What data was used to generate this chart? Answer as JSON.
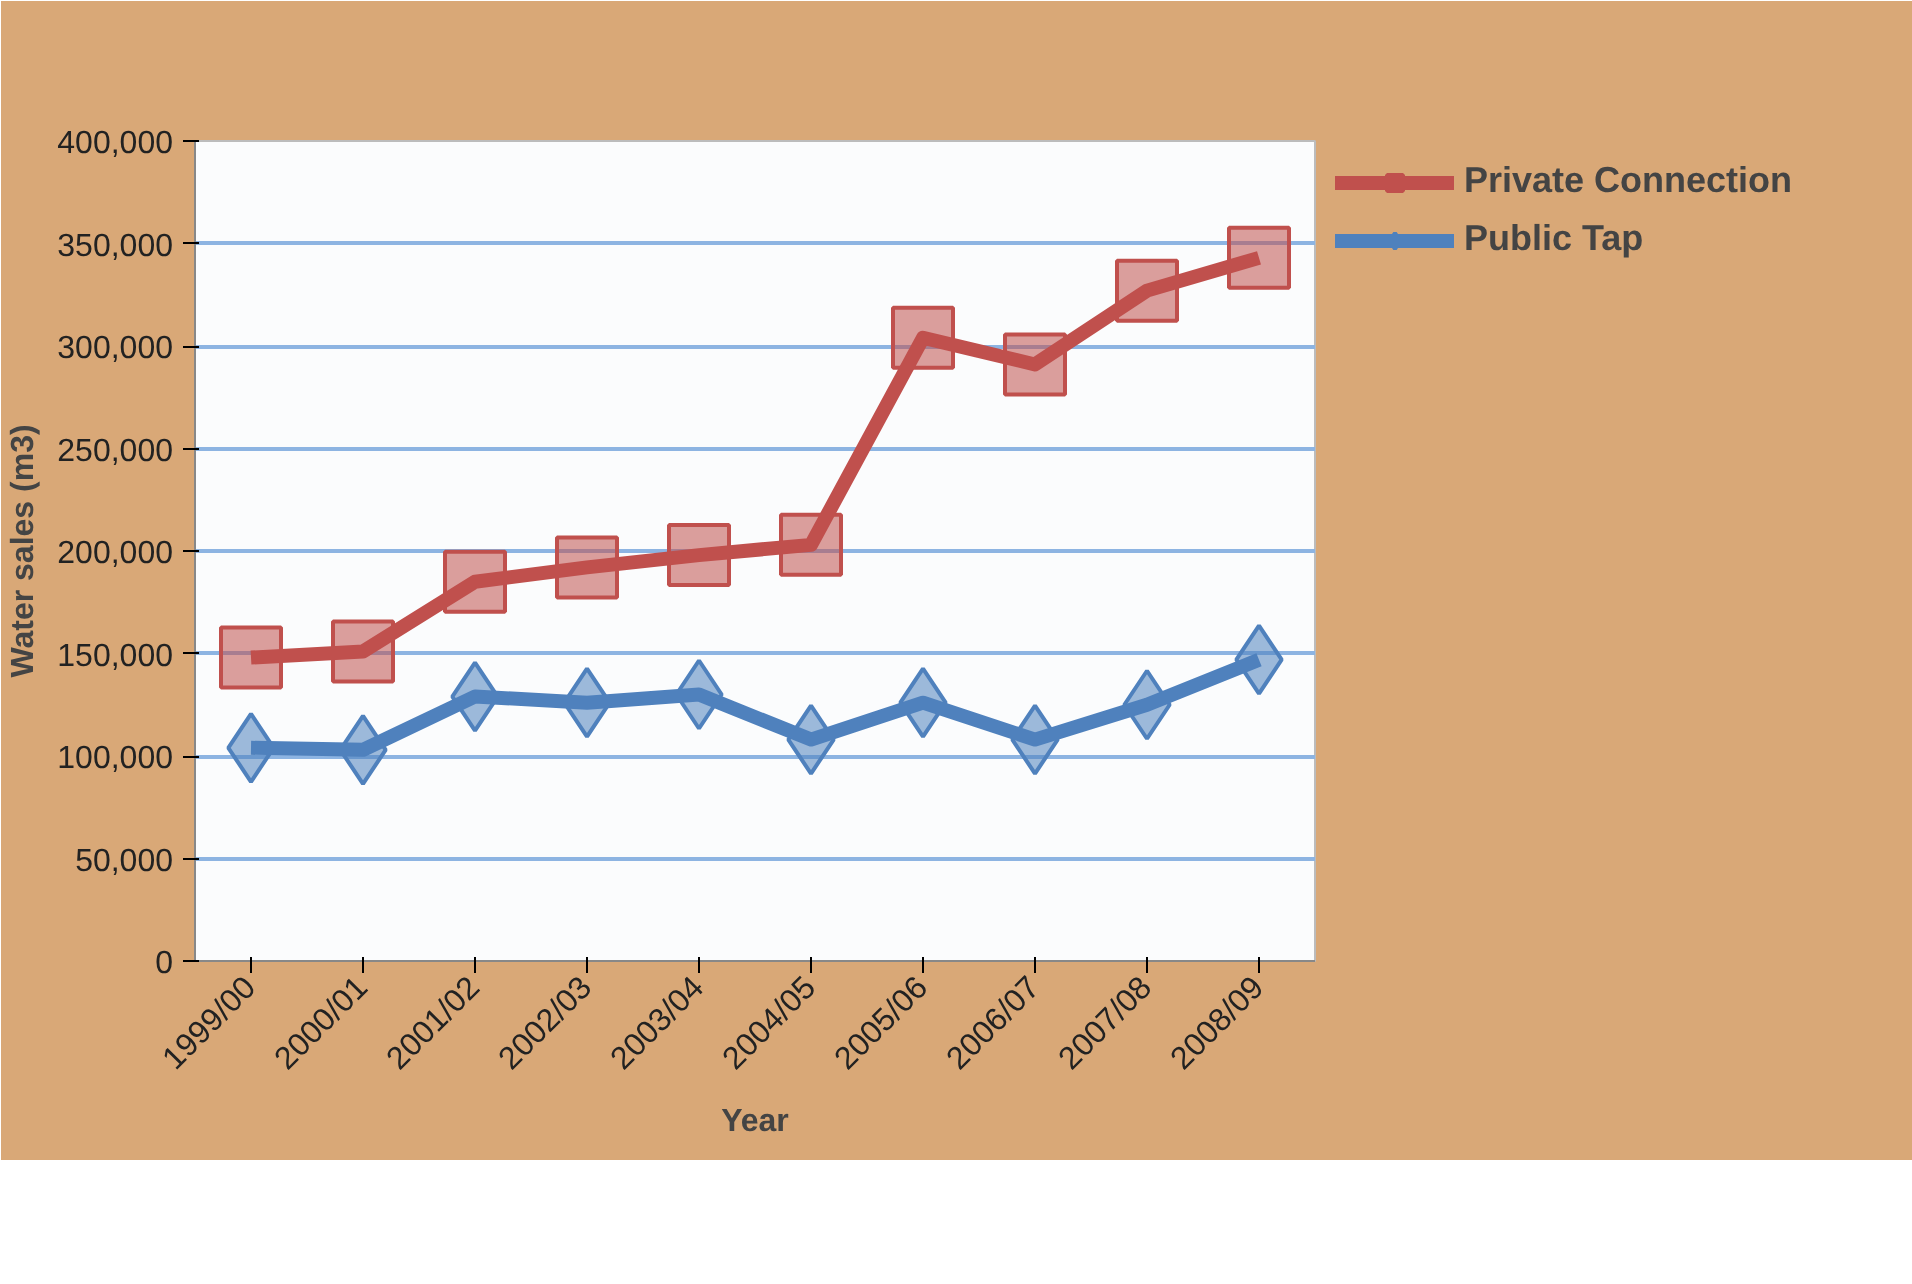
{
  "chart_data": {
    "type": "line",
    "xlabel": "Year",
    "ylabel": "Water sales (m3)",
    "categories": [
      "1999/00",
      "2000/01",
      "2001/02",
      "2002/03",
      "2003/04",
      "2004/05",
      "2005/06",
      "2006/07",
      "2007/08",
      "2008/09"
    ],
    "series": [
      {
        "name": "Private Connection",
        "color": "#c0504d",
        "marker": "square",
        "values": [
          148000,
          151000,
          185000,
          192000,
          198000,
          203000,
          304000,
          291000,
          327000,
          343000
        ]
      },
      {
        "name": "Public Tap",
        "color": "#4f81bd",
        "marker": "diamond",
        "values": [
          104000,
          103000,
          129000,
          126000,
          130000,
          108000,
          126000,
          108000,
          125000,
          147000
        ]
      }
    ],
    "ylim": [
      0,
      400000
    ],
    "yticks": [
      {
        "value": 0,
        "label": "0"
      },
      {
        "value": 50000,
        "label": "50,000"
      },
      {
        "value": 100000,
        "label": "100,000"
      },
      {
        "value": 150000,
        "label": "150,000"
      },
      {
        "value": 200000,
        "label": "200,000"
      },
      {
        "value": 250000,
        "label": "250,000"
      },
      {
        "value": 300000,
        "label": "300,000"
      },
      {
        "value": 350000,
        "label": "350,000"
      },
      {
        "value": 400000,
        "label": "400,000"
      }
    ],
    "grid": "y",
    "legend": "top right",
    "line_style": "solid"
  }
}
